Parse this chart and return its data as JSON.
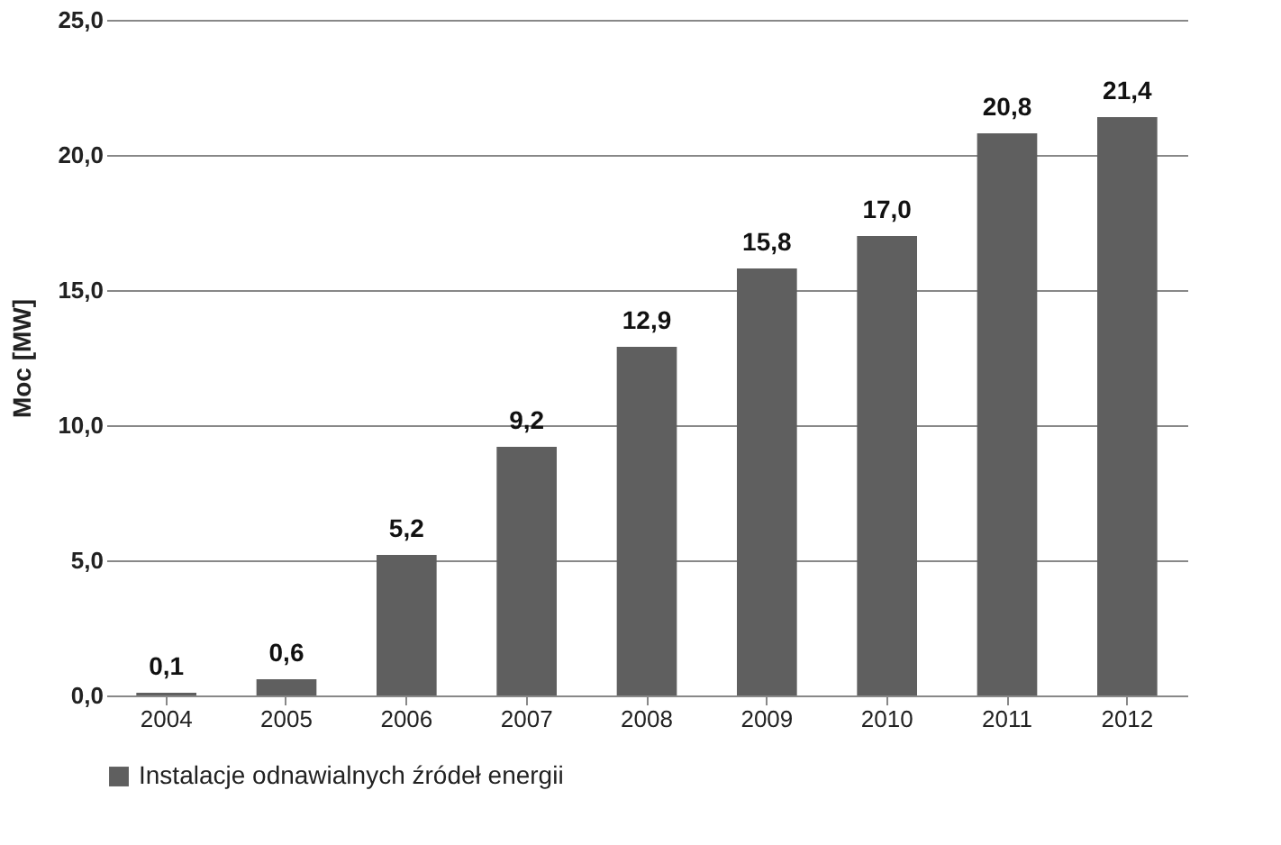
{
  "chart_data": {
    "type": "bar",
    "ylabel": "Moc [MW]",
    "categories": [
      "2004",
      "2005",
      "2006",
      "2007",
      "2008",
      "2009",
      "2010",
      "2011",
      "2012"
    ],
    "series": [
      {
        "name": "Instalacje odnawialnych źródeł energii",
        "color": "#5f5f5f",
        "values": [
          0.1,
          0.6,
          5.2,
          9.2,
          12.9,
          15.8,
          17.0,
          20.8,
          21.4
        ],
        "value_labels": [
          "0,1",
          "0,6",
          "5,2",
          "9,2",
          "12,9",
          "15,8",
          "17,0",
          "20,8",
          "21,4"
        ]
      }
    ],
    "ylim": [
      0,
      25
    ],
    "yticks": [
      {
        "value": 0,
        "label": "0,0"
      },
      {
        "value": 5,
        "label": "5,0"
      },
      {
        "value": 10,
        "label": "10,0"
      },
      {
        "value": 15,
        "label": "15,0"
      },
      {
        "value": 20,
        "label": "20,0"
      },
      {
        "value": 25,
        "label": "25,0"
      }
    ],
    "grid": "y",
    "legend": "bottom"
  }
}
